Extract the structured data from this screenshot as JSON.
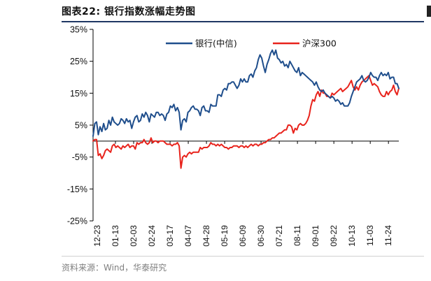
{
  "figure": {
    "title": "图表22:  银行指数涨幅走势图",
    "source": "资料来源：Wind，华泰研究"
  },
  "chart_data": {
    "type": "line",
    "title": "",
    "xlabel": "",
    "ylabel": "",
    "ylim": [
      -25,
      35
    ],
    "yticks": [
      -25,
      -15,
      -5,
      5,
      15,
      25,
      35
    ],
    "ytick_labels": [
      "-25%",
      "-15%",
      "-5%",
      "5%",
      "15%",
      "25%",
      "35%"
    ],
    "x_tick_labels": [
      "12-23",
      "01-13",
      "02-03",
      "02-24",
      "03-17",
      "04-07",
      "04-28",
      "05-19",
      "06-09",
      "06-30",
      "07-21",
      "08-11",
      "09-01",
      "09-22",
      "10-13",
      "11-03",
      "11-24"
    ],
    "grid": false,
    "legend_position": "top",
    "series": [
      {
        "name": "银行(中信)",
        "color": "#1f4e8c",
        "values": [
          1.5,
          5.5,
          6.0,
          2.0,
          4.5,
          3.0,
          5.5,
          3.5,
          4.0,
          6.5,
          5.0,
          7.5,
          6.0,
          5.5,
          5.0,
          5.5,
          7.0,
          6.5,
          5.5,
          7.0,
          6.0,
          6.5,
          4.0,
          6.0,
          7.5,
          8.0,
          6.0,
          6.5,
          8.5,
          7.5,
          9.0,
          8.0,
          6.0,
          8.5,
          8.0,
          7.5,
          9.0,
          9.0,
          8.0,
          8.5,
          8.0,
          6.5,
          8.5,
          9.0,
          11.0,
          10.5,
          11.5,
          9.5,
          10.5,
          9.0,
          3.5,
          6.5,
          7.0,
          6.0,
          9.0,
          9.5,
          10.5,
          11.0,
          10.0,
          10.0,
          9.5,
          8.0,
          10.5,
          11.0,
          9.5,
          9.5,
          9.0,
          11.5,
          11.0,
          11.0,
          11.0,
          14.5,
          14.5,
          14.0,
          16.0,
          16.5,
          16.0,
          18.0,
          18.0,
          18.5,
          18.5,
          17.5,
          16.5,
          17.5,
          19.5,
          18.5,
          19.5,
          18.5,
          18.5,
          20.5,
          21.0,
          20.0,
          22.0,
          23.0,
          25.5,
          27.0,
          26.0,
          23.5,
          21.5,
          24.0,
          25.5,
          27.5,
          28.5,
          27.0,
          28.5,
          26.0,
          25.5,
          24.5,
          25.0,
          23.5,
          24.0,
          23.0,
          25.0,
          24.0,
          23.0,
          22.0,
          21.5,
          23.0,
          20.5,
          21.5,
          21.0,
          20.5,
          20.0,
          19.5,
          19.0,
          18.5,
          17.5,
          18.5,
          17.0,
          16.0,
          15.5,
          16.0,
          15.0,
          14.5,
          14.0,
          13.5,
          14.0,
          13.5,
          12.5,
          13.0,
          12.5,
          11.5,
          12.0,
          11.0,
          11.0,
          11.0,
          12.0,
          14.0,
          15.5,
          17.0,
          18.5,
          19.0,
          19.5,
          20.5,
          19.0,
          18.5,
          19.0,
          20.0,
          21.5,
          20.5,
          20.0,
          20.0,
          19.0,
          20.5,
          21.5,
          20.5,
          21.0,
          20.5,
          21.5,
          19.5,
          20.0,
          20.0,
          18.0,
          18.0,
          16.5
        ]
      },
      {
        "name": "沪深300",
        "color": "#e8231c",
        "values": [
          0.0,
          0.5,
          0.5,
          -4.5,
          -4.0,
          -5.5,
          -4.5,
          -3.0,
          -2.5,
          -3.0,
          -3.5,
          -1.5,
          -1.0,
          -2.0,
          -1.5,
          -2.0,
          -2.5,
          -1.5,
          -2.0,
          -1.5,
          -1.0,
          -2.0,
          -1.5,
          -1.5,
          -2.5,
          -0.5,
          -1.0,
          -0.5,
          -0.5,
          0.5,
          -0.5,
          -1.0,
          -0.5,
          1.0,
          -0.5,
          0.0,
          0.0,
          -0.5,
          0.0,
          0.0,
          0.0,
          -0.5,
          -1.0,
          -1.0,
          -1.0,
          -1.5,
          -1.0,
          -1.0,
          -0.5,
          -1.5,
          -8.5,
          -5.0,
          -4.5,
          -5.0,
          -4.0,
          -3.5,
          -4.0,
          -3.5,
          -3.5,
          -3.5,
          -3.5,
          -2.0,
          -2.5,
          -2.0,
          -2.0,
          -2.0,
          -1.5,
          -0.5,
          -1.0,
          -1.0,
          -1.5,
          -1.0,
          -1.5,
          -1.0,
          -1.5,
          -2.0,
          -2.0,
          -2.5,
          -2.0,
          -2.0,
          -1.5,
          -1.5,
          -1.5,
          -2.0,
          -1.5,
          -1.5,
          -2.0,
          -1.5,
          -2.0,
          -1.5,
          -1.0,
          -1.5,
          -1.0,
          -1.0,
          -1.5,
          -1.0,
          -1.0,
          -0.5,
          -0.5,
          0.0,
          0.5,
          0.5,
          1.0,
          1.0,
          1.5,
          2.0,
          2.5,
          2.5,
          3.0,
          3.5,
          3.5,
          5.0,
          5.0,
          4.5,
          2.5,
          4.0,
          3.5,
          5.0,
          5.5,
          5.0,
          5.0,
          5.5,
          6.5,
          8.0,
          11.0,
          13.0,
          12.5,
          14.5,
          15.5,
          14.0,
          16.0,
          15.0,
          15.0,
          14.0,
          14.0,
          13.5,
          15.0,
          14.5,
          15.0,
          15.5,
          16.0,
          16.5,
          15.5,
          16.0,
          16.5,
          17.0,
          18.0,
          19.0,
          17.0,
          16.0,
          17.0,
          16.0,
          17.5,
          18.5,
          19.0,
          19.5,
          20.0,
          20.5,
          19.0,
          17.5,
          18.0,
          17.5,
          17.0,
          15.5,
          14.5,
          14.0,
          14.0,
          15.5,
          14.5,
          15.5,
          16.0,
          17.5,
          15.5,
          14.5,
          16.5
        ]
      }
    ]
  }
}
